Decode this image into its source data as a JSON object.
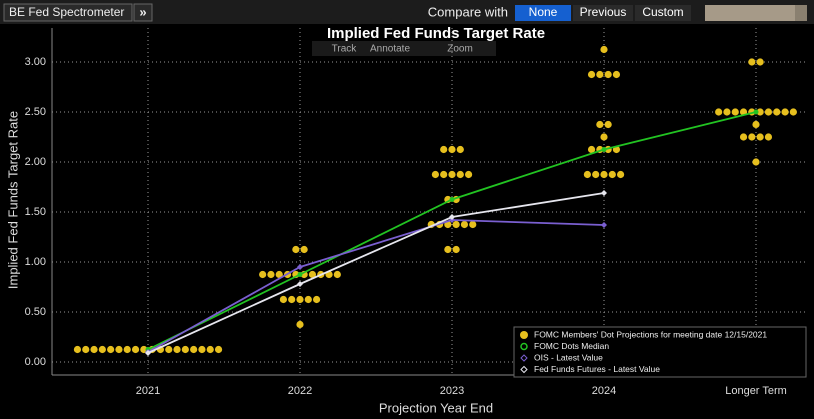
{
  "toolbar": {
    "app": "BE Fed Spectrometer",
    "expand": "»",
    "compare_label": "Compare with",
    "options": [
      "None",
      "Previous",
      "Custom"
    ],
    "selected": 0
  },
  "chart_tools": [
    "Track",
    "Annotate",
    "Zoom"
  ],
  "chart_data": {
    "type": "dot-plot",
    "title": "Implied Fed Funds Target Rate",
    "x_label": "Projection Year End",
    "y_label": "Implied Fed Funds Target Rate",
    "categories": [
      "2021",
      "2022",
      "2023",
      "2024",
      "Longer Term"
    ],
    "ylim": [
      -0.13,
      3.34
    ],
    "yticks": [
      {
        "value": 0,
        "label": "0.00"
      },
      {
        "value": 0.5,
        "label": "0.50"
      },
      {
        "value": 1,
        "label": "1.00"
      },
      {
        "value": 1.5,
        "label": "1.50"
      },
      {
        "value": 2,
        "label": "2.00"
      },
      {
        "value": 2.5,
        "label": "2.50"
      },
      {
        "value": 3,
        "label": "3.00"
      }
    ],
    "grid": true,
    "legend": "bottom-right",
    "series": [
      {
        "name": "FOMC Members' Dot Projections for meeting date 12/15/2021",
        "kind": "dots",
        "color": "#e6bf1e",
        "values": [
          [
            0.125,
            0.125,
            0.125,
            0.125,
            0.125,
            0.125,
            0.125,
            0.125,
            0.125,
            0.125,
            0.125,
            0.125,
            0.125,
            0.125,
            0.125,
            0.125,
            0.125,
            0.125
          ],
          [
            1.125,
            1.125,
            0.875,
            0.875,
            0.875,
            0.875,
            0.875,
            0.875,
            0.875,
            0.875,
            0.875,
            0.875,
            0.625,
            0.625,
            0.625,
            0.625,
            0.625,
            0.375
          ],
          [
            2.125,
            2.125,
            2.125,
            1.875,
            1.875,
            1.875,
            1.875,
            1.875,
            1.625,
            1.625,
            1.375,
            1.375,
            1.375,
            1.375,
            1.375,
            1.375,
            1.125,
            1.125
          ],
          [
            3.125,
            2.875,
            2.875,
            2.875,
            2.875,
            2.375,
            2.375,
            2.25,
            2.125,
            2.125,
            2.125,
            2.125,
            1.875,
            1.875,
            1.875,
            1.875,
            1.875
          ],
          [
            3.0,
            3.0,
            2.5,
            2.5,
            2.5,
            2.5,
            2.5,
            2.5,
            2.5,
            2.5,
            2.5,
            2.5,
            2.375,
            2.25,
            2.25,
            2.25,
            2.25,
            2.0
          ]
        ]
      },
      {
        "name": "FOMC Dots Median",
        "kind": "line",
        "color": "#22c322",
        "marker": "circle",
        "values": [
          0.125,
          0.875,
          1.625,
          2.125,
          2.5
        ]
      },
      {
        "name": "OIS - Latest Value",
        "kind": "line",
        "color": "#7a5fd0",
        "marker": "diamond",
        "values": [
          0.1,
          0.95,
          1.42,
          1.37,
          null
        ]
      },
      {
        "name": "Fed Funds Futures - Latest Value",
        "kind": "line",
        "color": "#e6e6ee",
        "marker": "diamond",
        "values": [
          0.09,
          0.78,
          1.45,
          1.69,
          null
        ]
      }
    ]
  }
}
